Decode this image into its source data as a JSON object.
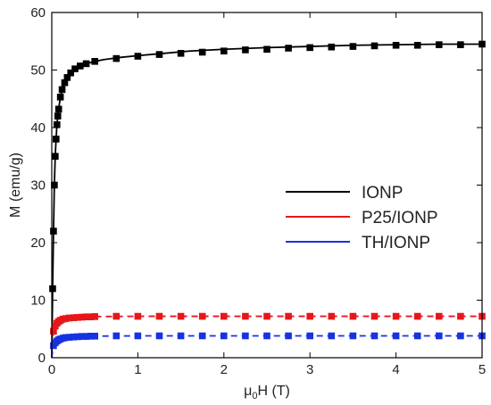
{
  "chart_data": {
    "type": "scatter",
    "xlabel_main": "μ",
    "xlabel_sub": "0",
    "xlabel_rest": "H (T)",
    "ylabel": "M (emu/g)",
    "xlim": [
      0,
      5
    ],
    "ylim": [
      0,
      60
    ],
    "xticks": [
      "0",
      "1",
      "2",
      "3",
      "4",
      "5"
    ],
    "yticks": [
      "0",
      "10",
      "20",
      "30",
      "40",
      "50",
      "60"
    ],
    "grid": false,
    "legend_position": "center-right",
    "series": [
      {
        "name": "IONP",
        "color": "#000000",
        "line": "solid",
        "curve_x": [
          0,
          0.01,
          0.02,
          0.03,
          0.04,
          0.05,
          0.06,
          0.07,
          0.08,
          0.1,
          0.12,
          0.15,
          0.18,
          0.22,
          0.27,
          0.33,
          0.4,
          0.5,
          0.6,
          0.8,
          1.0,
          1.3,
          1.6,
          2.0,
          2.5,
          3.0,
          3.5,
          4.0,
          4.5,
          5.0
        ],
        "curve_y": [
          0,
          12,
          22,
          30,
          35,
          38,
          40.5,
          42,
          43.2,
          45.3,
          46.6,
          47.8,
          48.7,
          49.5,
          50.2,
          50.7,
          51.1,
          51.5,
          51.8,
          52.2,
          52.5,
          52.9,
          53.3,
          53.6,
          53.9,
          54.1,
          54.3,
          54.4,
          54.5,
          54.5
        ],
        "x": [
          0.01,
          0.02,
          0.03,
          0.04,
          0.05,
          0.06,
          0.07,
          0.08,
          0.1,
          0.12,
          0.15,
          0.18,
          0.22,
          0.27,
          0.33,
          0.4,
          0.5,
          0.75,
          1.0,
          1.25,
          1.5,
          1.75,
          2.0,
          2.25,
          2.5,
          2.75,
          3.0,
          3.25,
          3.5,
          3.75,
          4.0,
          4.25,
          4.5,
          4.75,
          5.0
        ],
        "y": [
          12,
          22,
          30,
          35,
          38,
          40.5,
          42,
          43.2,
          45.3,
          46.6,
          47.8,
          48.7,
          49.5,
          50.2,
          50.7,
          51.1,
          51.5,
          52.0,
          52.4,
          52.7,
          52.9,
          53.1,
          53.3,
          53.5,
          53.6,
          53.8,
          53.9,
          54.0,
          54.1,
          54.2,
          54.3,
          54.3,
          54.4,
          54.4,
          54.5
        ]
      },
      {
        "name": "P25/IONP",
        "color": "#e8161b",
        "line": "dashed",
        "curve_x": [
          0,
          0.01,
          0.02,
          0.04,
          0.06,
          0.08,
          0.1,
          0.13,
          0.17,
          0.22,
          0.3,
          0.4,
          0.5,
          1.0,
          2.0,
          3.0,
          4.0,
          5.0
        ],
        "curve_y": [
          0,
          3.5,
          4.6,
          5.5,
          6.0,
          6.3,
          6.5,
          6.7,
          6.8,
          6.9,
          7.0,
          7.1,
          7.15,
          7.2,
          7.2,
          7.2,
          7.2,
          7.2
        ],
        "x": [
          0.02,
          0.04,
          0.06,
          0.08,
          0.1,
          0.13,
          0.16,
          0.2,
          0.25,
          0.3,
          0.35,
          0.4,
          0.45,
          0.5,
          0.75,
          1.0,
          1.25,
          1.5,
          1.75,
          2.0,
          2.25,
          2.5,
          2.75,
          3.0,
          3.25,
          3.5,
          3.75,
          4.0,
          4.25,
          4.5,
          4.75,
          5.0
        ],
        "y": [
          4.6,
          5.5,
          6.0,
          6.3,
          6.5,
          6.7,
          6.8,
          6.9,
          6.95,
          7.0,
          7.05,
          7.1,
          7.1,
          7.15,
          7.2,
          7.2,
          7.2,
          7.2,
          7.2,
          7.2,
          7.2,
          7.2,
          7.2,
          7.2,
          7.2,
          7.2,
          7.2,
          7.2,
          7.2,
          7.2,
          7.2,
          7.2
        ]
      },
      {
        "name": "TH/IONP",
        "color": "#1732e0",
        "line": "dashed",
        "curve_x": [
          0,
          0.01,
          0.02,
          0.04,
          0.06,
          0.08,
          0.1,
          0.13,
          0.17,
          0.22,
          0.3,
          0.4,
          0.5,
          1.0,
          2.0,
          3.0,
          4.0,
          5.0
        ],
        "curve_y": [
          0,
          1.5,
          2.1,
          2.6,
          2.9,
          3.1,
          3.25,
          3.4,
          3.5,
          3.6,
          3.65,
          3.7,
          3.75,
          3.8,
          3.8,
          3.8,
          3.8,
          3.8
        ],
        "x": [
          0.02,
          0.04,
          0.06,
          0.08,
          0.1,
          0.13,
          0.16,
          0.2,
          0.25,
          0.3,
          0.35,
          0.4,
          0.45,
          0.5,
          0.75,
          1.0,
          1.25,
          1.5,
          1.75,
          2.0,
          2.25,
          2.5,
          2.75,
          3.0,
          3.25,
          3.5,
          3.75,
          4.0,
          4.25,
          4.5,
          4.75,
          5.0
        ],
        "y": [
          2.1,
          2.6,
          2.9,
          3.1,
          3.25,
          3.4,
          3.5,
          3.55,
          3.6,
          3.65,
          3.7,
          3.7,
          3.75,
          3.75,
          3.8,
          3.8,
          3.8,
          3.8,
          3.8,
          3.8,
          3.8,
          3.8,
          3.8,
          3.8,
          3.8,
          3.8,
          3.8,
          3.8,
          3.8,
          3.8,
          3.8,
          3.8
        ]
      }
    ]
  }
}
